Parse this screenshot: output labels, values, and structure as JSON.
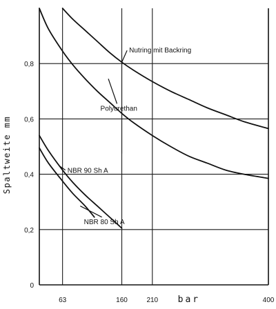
{
  "chart_data": {
    "type": "line",
    "title": "",
    "xlabel": "bar",
    "ylabel": "Spaltweite mm",
    "xlim": [
      25,
      400
    ],
    "ylim": [
      0,
      1.0
    ],
    "x_ticks": [
      {
        "value": 63,
        "label": "63"
      },
      {
        "value": 160,
        "label": "160"
      },
      {
        "value": 210,
        "label": "210"
      },
      {
        "value": 400,
        "label": "400"
      }
    ],
    "x_axis_label_value": 270,
    "y_ticks": [
      {
        "value": 0,
        "label": "0"
      },
      {
        "value": 0.2,
        "label": "0,2"
      },
      {
        "value": 0.4,
        "label": "0,4"
      },
      {
        "value": 0.6,
        "label": "0,6"
      },
      {
        "value": 0.8,
        "label": "0,8"
      }
    ],
    "vertical_gridlines": [
      63,
      160,
      210
    ],
    "short_vertical_lines": [
      {
        "x": 160,
        "y_from": 0.475,
        "y_to": 0.83
      }
    ],
    "grid": true,
    "series": [
      {
        "name": "Nutring mit Backring",
        "x": [
          63,
          80,
          100,
          120,
          140,
          160,
          180,
          210,
          240,
          270,
          300,
          330,
          360,
          400
        ],
        "y": [
          1.0,
          0.96,
          0.92,
          0.88,
          0.84,
          0.805,
          0.775,
          0.735,
          0.7,
          0.67,
          0.64,
          0.615,
          0.59,
          0.565
        ]
      },
      {
        "name": "Polyurethan",
        "x": [
          25,
          40,
          63,
          80,
          100,
          120,
          140,
          160,
          180,
          210,
          240,
          270,
          300,
          330,
          360,
          400
        ],
        "y": [
          1.0,
          0.925,
          0.845,
          0.795,
          0.745,
          0.7,
          0.66,
          0.62,
          0.585,
          0.54,
          0.5,
          0.465,
          0.44,
          0.415,
          0.4,
          0.385
        ]
      },
      {
        "name": "NBR 90 Sh A",
        "x": [
          25,
          40,
          63,
          80,
          100,
          120,
          140,
          160
        ],
        "y": [
          0.54,
          0.485,
          0.415,
          0.37,
          0.325,
          0.285,
          0.245,
          0.205
        ]
      },
      {
        "name": "NBR 80 Sh A",
        "x": [
          25,
          40,
          63,
          80,
          100,
          115
        ],
        "y": [
          0.495,
          0.44,
          0.375,
          0.33,
          0.285,
          0.245
        ]
      }
    ],
    "annotations": [
      {
        "text": "Nutring mit Backring",
        "x": 172,
        "y": 0.84,
        "leader_to": [
          160,
          0.805
        ]
      },
      {
        "text": "Polyurethan",
        "x": 125,
        "y": 0.63,
        "leader_to": [
          138,
          0.745
        ]
      },
      {
        "text": "NBR 90 Sh A",
        "x": 71,
        "y": 0.405,
        "leader_to": [
          58,
          0.43
        ]
      },
      {
        "text": "NBR 80 Sh A",
        "x": 98,
        "y": 0.22,
        "leader_to": [
          92,
          0.285
        ]
      }
    ]
  }
}
